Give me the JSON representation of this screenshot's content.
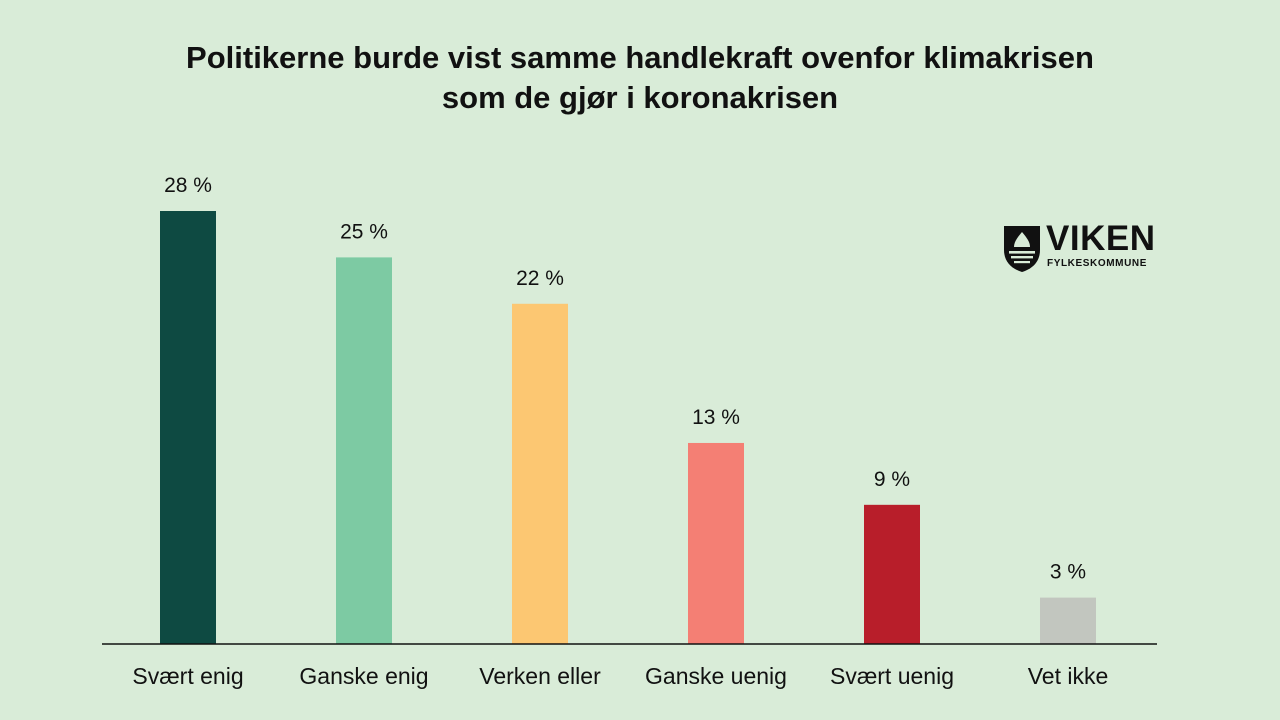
{
  "chart_data": {
    "type": "bar",
    "title_lines": [
      "Politikerne burde vist samme handlekraft ovenfor klimakrisen",
      "som de gjør i koronakrisen"
    ],
    "categories": [
      "Svært enig",
      "Ganske enig",
      "Verken eller",
      "Ganske uenig",
      "Svært uenig",
      "Vet ikke"
    ],
    "values": [
      28,
      25,
      22,
      13,
      9,
      3
    ],
    "value_labels": [
      "28 %",
      "25 %",
      "22 %",
      "13 %",
      "9 %",
      "3 %"
    ],
    "colors": [
      "#0e4a42",
      "#7dcaa3",
      "#fcc772",
      "#f47f74",
      "#b81e2a",
      "#c2c6bf"
    ],
    "ylim": [
      0,
      28
    ],
    "grid": false,
    "legend": "none"
  },
  "logo": {
    "name": "VIKEN",
    "subtitle": "FYLKESKOMMUNE",
    "icon": "viken-shield-icon"
  }
}
